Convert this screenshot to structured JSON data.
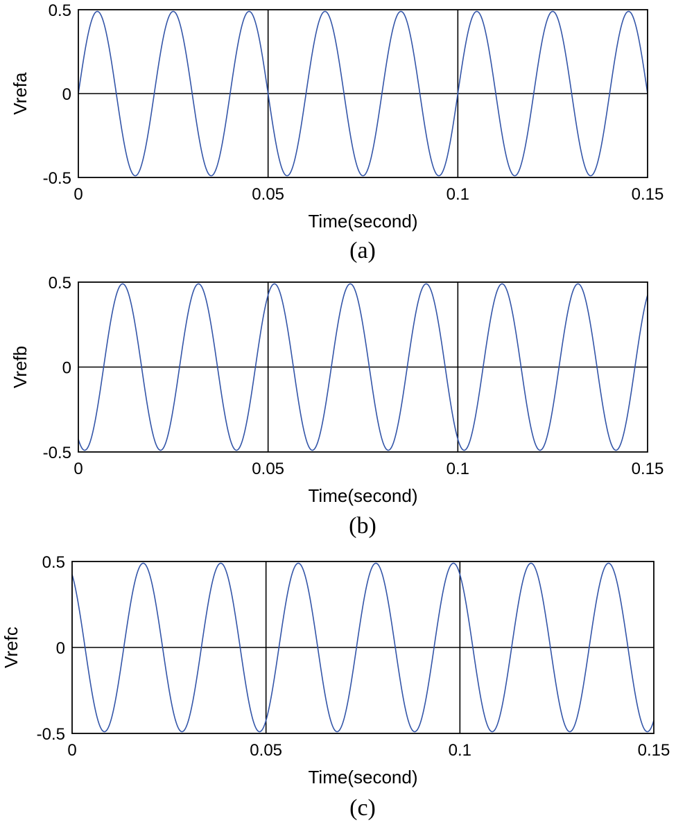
{
  "chart_data": [
    {
      "type": "line",
      "caption": "(a)",
      "xlabel": "Time(second)",
      "ylabel": "Vrefa",
      "xlim": [
        0,
        0.15
      ],
      "ylim": [
        -0.5,
        0.5
      ],
      "xticks": [
        "0",
        "0.05",
        "0.1",
        "0.15"
      ],
      "yticks": [
        "-0.5",
        "0",
        "0.5"
      ],
      "grid": "x=0.05, x=0.1, y=0",
      "series": [
        {
          "amplitude": 0.49,
          "frequency_hz": 50,
          "phase_deg": 0,
          "t_start": 0,
          "t_end": 0.15,
          "color": "#3355a8"
        }
      ]
    },
    {
      "type": "line",
      "caption": "(b)",
      "xlabel": "Time(second)",
      "ylabel": "Vrefb",
      "xlim": [
        0,
        0.15
      ],
      "ylim": [
        -0.5,
        0.5
      ],
      "xticks": [
        "0",
        "0.05",
        "0.1",
        "0.15"
      ],
      "yticks": [
        "-0.5",
        "0",
        "0.5"
      ],
      "grid": "x=0.05, x=0.1, y=0",
      "series": [
        {
          "amplitude": 0.49,
          "frequency_hz": 50,
          "phase_deg": -120,
          "t_start": 0,
          "t_end": 0.15,
          "color": "#3355a8"
        }
      ]
    },
    {
      "type": "line",
      "caption": "(c)",
      "xlabel": "Time(second)",
      "ylabel": "Vrefc",
      "xlim": [
        0,
        0.15
      ],
      "ylim": [
        -0.5,
        0.5
      ],
      "xticks": [
        "0",
        "0.05",
        "0.1",
        "0.15"
      ],
      "yticks": [
        "-0.5",
        "0",
        "0.5"
      ],
      "grid": "x=0.05, x=0.1, y=0",
      "series": [
        {
          "amplitude": 0.49,
          "frequency_hz": 50,
          "phase_deg": 120,
          "t_start": 0,
          "t_end": 0.15,
          "color": "#3355a8"
        }
      ]
    }
  ]
}
